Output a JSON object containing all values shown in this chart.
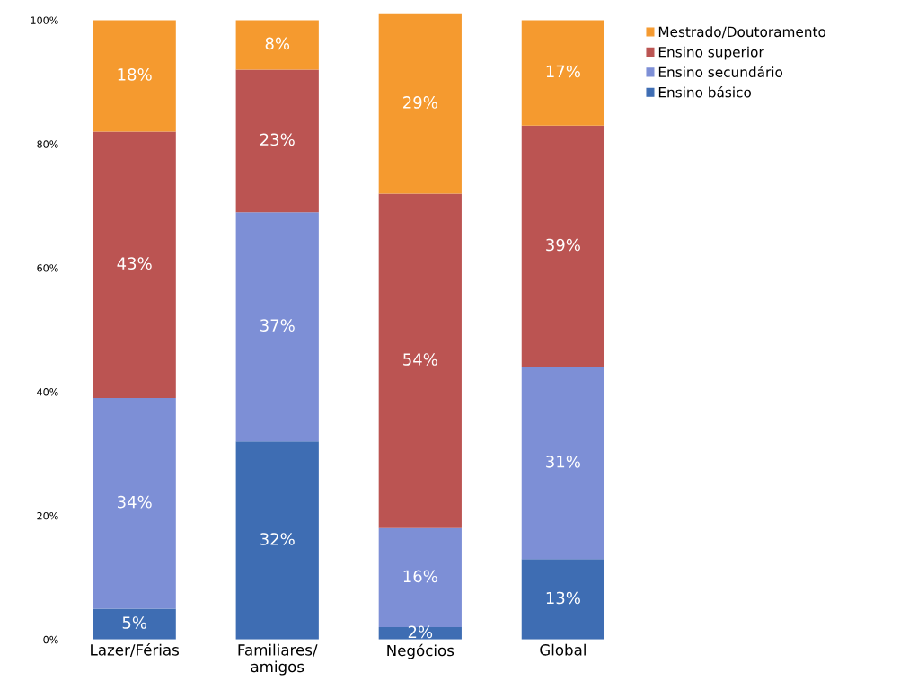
{
  "chart_data": {
    "type": "bar",
    "stacked": true,
    "categories": [
      "Lazer/Férias",
      "Familiares/\namigos",
      "Negócios",
      "Global"
    ],
    "series": [
      {
        "name": "Ensino básico",
        "color": "#3e6db3",
        "values": [
          5,
          32,
          2,
          13
        ],
        "value_labels": [
          "5%",
          "32%",
          "2%",
          "13%"
        ]
      },
      {
        "name": "Ensino secundário",
        "color": "#7d8fd6",
        "values": [
          34,
          37,
          16,
          31
        ],
        "value_labels": [
          "34%",
          "37%",
          "16%",
          "31%"
        ]
      },
      {
        "name": "Ensino superior",
        "color": "#bb5452",
        "values": [
          43,
          23,
          54,
          39
        ],
        "value_labels": [
          "43%",
          "23%",
          "54%",
          "39%"
        ]
      },
      {
        "name": "Mestrado/Doutoramento",
        "color": "#f59a2f",
        "values": [
          18,
          8,
          29,
          17
        ],
        "value_labels": [
          "18%",
          "8%",
          "29%",
          "17%"
        ]
      }
    ],
    "ylim": [
      0,
      101
    ],
    "yticks": [
      {
        "value": 0,
        "label": "0%"
      },
      {
        "value": 20,
        "label": "20%"
      },
      {
        "value": 40,
        "label": "40%"
      },
      {
        "value": 60,
        "label": "60%"
      },
      {
        "value": 80,
        "label": "80%"
      },
      {
        "value": 100,
        "label": "100%"
      }
    ],
    "grid": false,
    "legend": "top right"
  }
}
